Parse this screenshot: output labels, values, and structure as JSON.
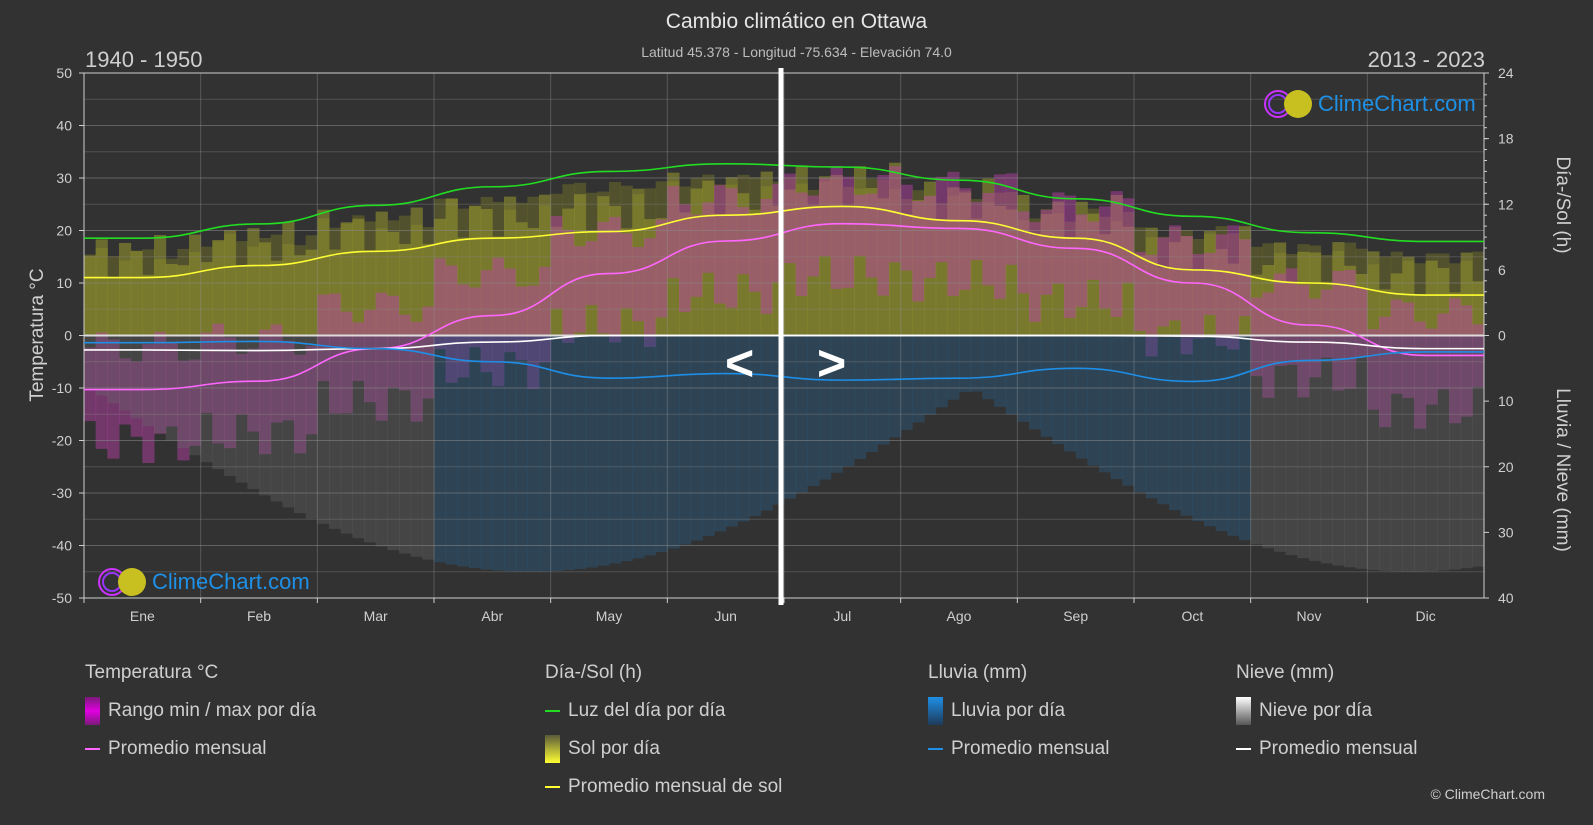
{
  "header": {
    "title": "Cambio climático en Ottawa",
    "subtitle": "Latitud 45.378 - Longitud -75.634 - Elevación 74.0",
    "period_left": "1940 - 1950",
    "period_right": "2013 - 2023"
  },
  "axes": {
    "left_label": "Temperatura °C",
    "right_label_top": "Día-/Sol (h)",
    "right_label_bottom": "Lluvia / Nieve (mm)",
    "left_ticks": [
      "50",
      "40",
      "30",
      "20",
      "10",
      "0",
      "-10",
      "-20",
      "-30",
      "-40",
      "-50"
    ],
    "right_ticks_top": [
      "24",
      "18",
      "12",
      "6",
      "0"
    ],
    "right_ticks_bottom": [
      "10",
      "20",
      "30",
      "40"
    ],
    "months": [
      "Ene",
      "Feb",
      "Mar",
      "Abr",
      "May",
      "Jun",
      "Jul",
      "Ago",
      "Sep",
      "Oct",
      "Nov",
      "Dic"
    ]
  },
  "navigation": {
    "prev": "<",
    "next": ">"
  },
  "watermark": {
    "text": "ClimeChart.com"
  },
  "legend": {
    "temperature": {
      "title": "Temperatura °C",
      "range": "Rango min / max por día",
      "avg": "Promedio mensual"
    },
    "sun": {
      "title": "Día-/Sol (h)",
      "daylight": "Luz del día por día",
      "sun_per_day": "Sol por día",
      "sun_avg": "Promedio mensual de sol"
    },
    "rain": {
      "title": "Lluvia (mm)",
      "per_day": "Lluvia por día",
      "avg": "Promedio mensual"
    },
    "snow": {
      "title": "Nieve (mm)",
      "per_day": "Nieve por día",
      "avg": "Promedio mensual"
    }
  },
  "copyright": "© ClimeChart.com",
  "colors": {
    "background": "#323232",
    "temp_avg": "#ff66ff",
    "temp_range": "#e100e1",
    "daylight": "#22dd22",
    "sun_avg": "#ffff33",
    "sun_bar": "#c8c832",
    "rain": "#1e8ee6",
    "snow": "#ffffff"
  },
  "chart_data": {
    "type": "line",
    "title": "Cambio climático en Ottawa",
    "subtitle": "Latitud 45.378 - Longitud -75.634 - Elevación 74.0",
    "categories": [
      "Ene",
      "Feb",
      "Mar",
      "Abr",
      "May",
      "Jun",
      "Jul",
      "Ago",
      "Sep",
      "Oct",
      "Nov",
      "Dic"
    ],
    "left_axis": {
      "label": "Temperatura °C",
      "range": [
        -50,
        50
      ]
    },
    "right_axis_top": {
      "label": "Día-/Sol (h)",
      "range": [
        0,
        24
      ]
    },
    "right_axis_bottom": {
      "label": "Lluvia / Nieve (mm)",
      "range": [
        0,
        40
      ]
    },
    "split_periods": {
      "left": "1940 - 1950",
      "right": "2013 - 2023",
      "split_after_month": "Jun"
    },
    "series": [
      {
        "name": "Temperatura promedio mensual (°C)",
        "axis": "left",
        "values": [
          -10.3,
          -8.7,
          -2.5,
          3.8,
          11.8,
          18.0,
          21.3,
          20.4,
          16.6,
          10.0,
          2.0,
          -3.8
        ]
      },
      {
        "name": "Luz del día por día (h)",
        "axis": "right_top",
        "values": [
          8.9,
          10.2,
          11.9,
          13.6,
          15.0,
          15.7,
          15.4,
          14.2,
          12.5,
          10.9,
          9.4,
          8.6
        ]
      },
      {
        "name": "Promedio mensual de sol (h)",
        "axis": "right_top",
        "values": [
          5.3,
          6.4,
          7.7,
          8.9,
          9.5,
          11.0,
          11.8,
          10.5,
          8.9,
          6.0,
          4.8,
          3.7
        ]
      },
      {
        "name": "Lluvia promedio mensual (mm)",
        "axis": "right_bottom",
        "values": [
          1.1,
          0.9,
          2.0,
          4.0,
          6.5,
          5.8,
          6.8,
          6.5,
          5.0,
          7.0,
          3.8,
          2.5
        ]
      },
      {
        "name": "Nieve promedio mensual (mm)",
        "axis": "right_bottom",
        "values": [
          2.2,
          2.3,
          2.0,
          1.0,
          0.0,
          0.0,
          0.0,
          0.0,
          0.0,
          0.1,
          1.0,
          2.0
        ]
      }
    ],
    "legend": [
      "Rango min / max por día",
      "Promedio mensual",
      "Luz del día por día",
      "Sol por día",
      "Promedio mensual de sol",
      "Lluvia por día",
      "Promedio mensual",
      "Nieve por día",
      "Promedio mensual"
    ],
    "grid": true,
    "legend_position": "bottom"
  }
}
